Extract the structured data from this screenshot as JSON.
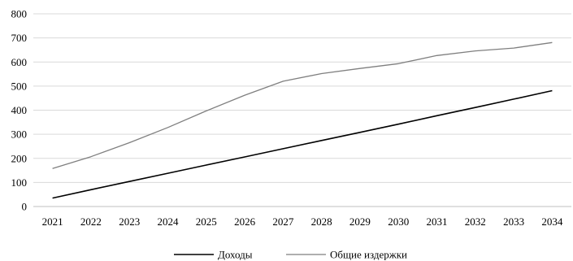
{
  "chart_data": {
    "type": "line",
    "title": "",
    "xlabel": "",
    "ylabel": "",
    "x": [
      "2021",
      "2022",
      "2023",
      "2024",
      "2025",
      "2026",
      "2027",
      "2028",
      "2029",
      "2030",
      "2031",
      "2032",
      "2033",
      "2034"
    ],
    "ylim": [
      0,
      800
    ],
    "yticks": [
      "0",
      "100",
      "200",
      "300",
      "400",
      "500",
      "600",
      "700",
      "800"
    ],
    "grid": true,
    "legend_position": "bottom",
    "series": [
      {
        "name": "Доходы",
        "color": "#000000",
        "values": [
          35,
          70,
          104,
          138,
          172,
          206,
          240,
          274,
          308,
          342,
          377,
          411,
          446,
          481
        ]
      },
      {
        "name": "Общие издержки",
        "color": "#7f7f7f",
        "values": [
          158,
          207,
          265,
          328,
          397,
          462,
          520,
          552,
          573,
          593,
          627,
          646,
          658,
          681
        ]
      }
    ]
  }
}
